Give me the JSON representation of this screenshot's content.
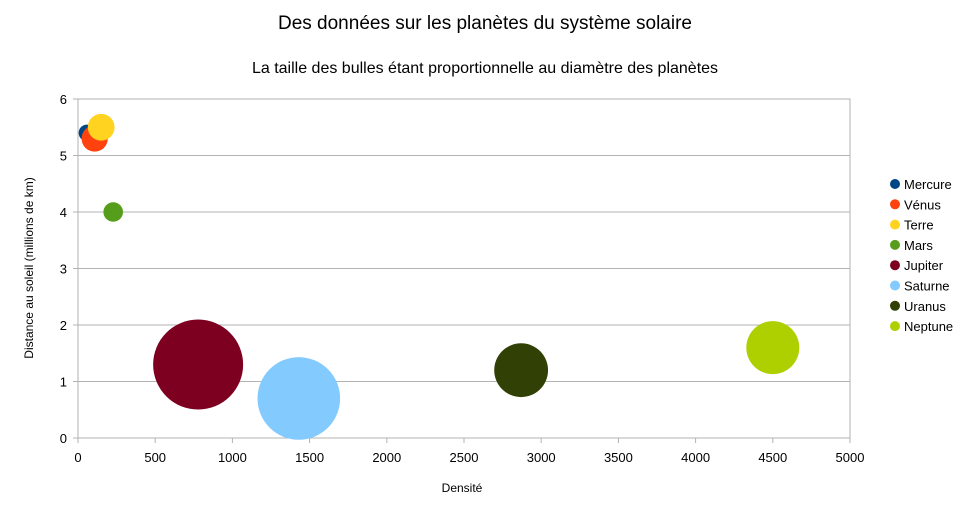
{
  "chart_data": {
    "type": "bubble",
    "title": "Des données sur les planètes du système solaire",
    "subtitle": "La taille des bulles étant proportionnelle au diamètre des planètes",
    "xlabel": "Densité",
    "ylabel": "Distance au soleil (millions de km)",
    "xlim": [
      0,
      5000
    ],
    "ylim": [
      0,
      6
    ],
    "xticks": [
      "0",
      "500",
      "1000",
      "1500",
      "2000",
      "2500",
      "3000",
      "3500",
      "4000",
      "4500",
      "5000"
    ],
    "yticks": [
      "0",
      "1",
      "2",
      "3",
      "4",
      "5",
      "6"
    ],
    "grid": "horizontal",
    "legend_position": "right",
    "series": [
      {
        "name": "Mercure",
        "x": 58,
        "y": 5.4,
        "diameter": 4879,
        "color": "#004586"
      },
      {
        "name": "Vénus",
        "x": 108,
        "y": 5.3,
        "diameter": 12104,
        "color": "#ff420e"
      },
      {
        "name": "Terre",
        "x": 150,
        "y": 5.5,
        "diameter": 12756,
        "color": "#ffd320"
      },
      {
        "name": "Mars",
        "x": 228,
        "y": 4.0,
        "diameter": 6792,
        "color": "#579d1c"
      },
      {
        "name": "Jupiter",
        "x": 778,
        "y": 1.3,
        "diameter": 142984,
        "color": "#7e0021"
      },
      {
        "name": "Saturne",
        "x": 1430,
        "y": 0.7,
        "diameter": 120536,
        "color": "#83caff"
      },
      {
        "name": "Uranus",
        "x": 2870,
        "y": 1.2,
        "diameter": 51118,
        "color": "#314004"
      },
      {
        "name": "Neptune",
        "x": 4500,
        "y": 1.6,
        "diameter": 49528,
        "color": "#aecf00"
      }
    ]
  }
}
